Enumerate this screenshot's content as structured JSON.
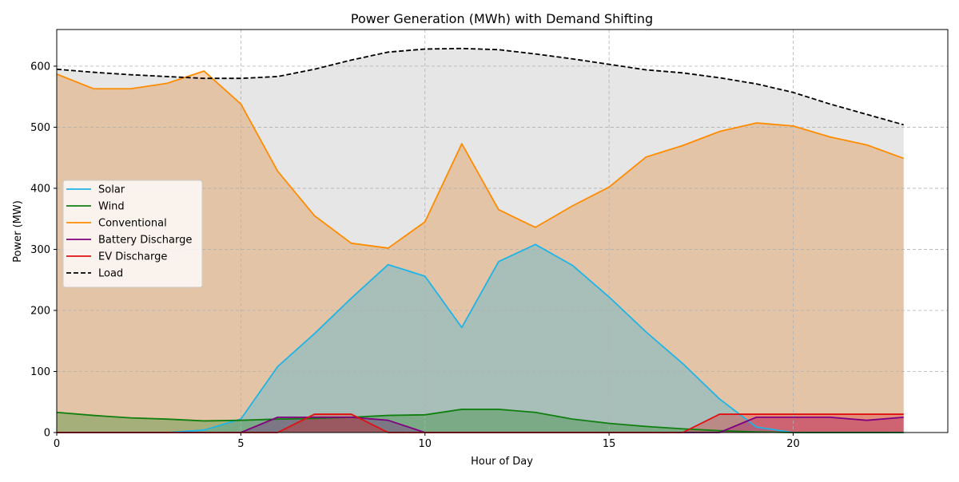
{
  "chart_data": {
    "type": "area",
    "title": "Power Generation (MWh) with Demand Shifting",
    "xlabel": "Hour of Day",
    "ylabel": "Power (MW)",
    "xlim": [
      0,
      24.2
    ],
    "ylim": [
      0,
      660
    ],
    "xticks": [
      0,
      5,
      10,
      15,
      20
    ],
    "yticks": [
      0,
      100,
      200,
      300,
      400,
      500,
      600
    ],
    "grid": true,
    "legend_position": "center-left",
    "x": [
      0,
      1,
      2,
      3,
      4,
      5,
      6,
      7,
      8,
      9,
      10,
      11,
      12,
      13,
      14,
      15,
      16,
      17,
      18,
      19,
      20,
      21,
      22,
      23
    ],
    "series": [
      {
        "name": "Solar",
        "color": "#1eb4e6",
        "fill": "#1eb4e6",
        "fill_opacity": 0.3,
        "values": [
          0,
          0,
          0,
          0,
          4,
          22,
          108,
          162,
          220,
          275,
          256,
          172,
          280,
          308,
          274,
          222,
          165,
          113,
          55,
          9,
          0,
          0,
          0,
          0
        ]
      },
      {
        "name": "Wind",
        "color": "#107f10",
        "fill": "#107f10",
        "fill_opacity": 0.3,
        "values": [
          33,
          28,
          24,
          22,
          19,
          20,
          22,
          23,
          25,
          28,
          29,
          38,
          38,
          33,
          22,
          15,
          10,
          6,
          3,
          1,
          0,
          0,
          0,
          0
        ]
      },
      {
        "name": "Conventional",
        "color": "#ff8c00",
        "fill": "#e07818",
        "fill_opacity": 0.3,
        "values": [
          587,
          563,
          563,
          572,
          592,
          538,
          428,
          355,
          310,
          302,
          345,
          473,
          365,
          336,
          371,
          402,
          451,
          470,
          493,
          507,
          502,
          484,
          471,
          449
        ]
      },
      {
        "name": "Battery Discharge",
        "color": "#800080",
        "fill": "#800080",
        "fill_opacity": 0.3,
        "values": [
          0,
          0,
          0,
          0,
          0,
          0,
          25,
          25,
          25,
          20,
          0,
          0,
          0,
          0,
          0,
          0,
          0,
          0,
          0,
          25,
          25,
          25,
          20,
          25
        ]
      },
      {
        "name": "EV Discharge",
        "color": "#e01010",
        "fill": "#e01010",
        "fill_opacity": 0.3,
        "values": [
          0,
          0,
          0,
          0,
          0,
          0,
          0,
          30,
          30,
          0,
          0,
          0,
          0,
          0,
          0,
          0,
          0,
          0,
          30,
          30,
          30,
          30,
          30,
          30
        ]
      },
      {
        "name": "Load",
        "color": "#000000",
        "fill": "#808080",
        "fill_opacity": 0.2,
        "dashed": true,
        "values": [
          595,
          590,
          586,
          583,
          580,
          580,
          583,
          595,
          610,
          623,
          628,
          629,
          627,
          620,
          612,
          603,
          594,
          589,
          581,
          571,
          557,
          538,
          521,
          504
        ]
      }
    ]
  }
}
